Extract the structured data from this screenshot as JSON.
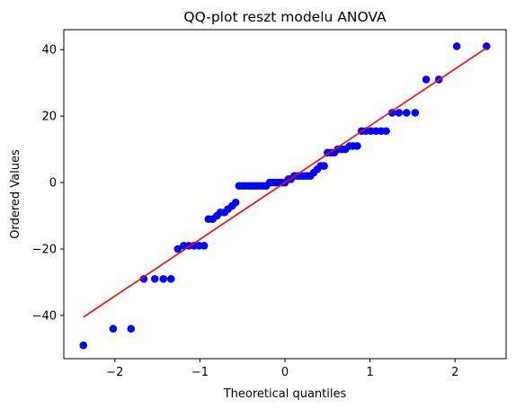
{
  "chart_data": {
    "type": "scatter",
    "title": "QQ-plot reszt modelu ANOVA",
    "xlabel": "Theoretical quantiles",
    "ylabel": "Ordered Values",
    "xlim": [
      -2.6,
      2.6
    ],
    "ylim": [
      -53,
      46
    ],
    "xticks": [
      -2,
      -1,
      0,
      1,
      2
    ],
    "xtick_labels": [
      "−2",
      "−1",
      "0",
      "1",
      "2"
    ],
    "yticks": [
      -40,
      -20,
      0,
      20,
      40
    ],
    "ytick_labels": [
      "−40",
      "−20",
      "0",
      "20",
      "40"
    ],
    "grid": false,
    "legend": "none",
    "colors": {
      "points": "#0000ff",
      "fit_line": "#ff0000"
    },
    "series": [
      {
        "type": "scatter",
        "points": [
          [
            -2.37,
            -49
          ],
          [
            -2.02,
            -44
          ],
          [
            -1.81,
            -44
          ],
          [
            -1.66,
            -29
          ],
          [
            -1.53,
            -29
          ],
          [
            -1.43,
            -29
          ],
          [
            -1.34,
            -29
          ],
          [
            -1.26,
            -20
          ],
          [
            -1.19,
            -19
          ],
          [
            -1.13,
            -19
          ],
          [
            -1.07,
            -19
          ],
          [
            -1.01,
            -19
          ],
          [
            -0.95,
            -19
          ],
          [
            -0.9,
            -11
          ],
          [
            -0.85,
            -11
          ],
          [
            -0.8,
            -10
          ],
          [
            -0.76,
            -9
          ],
          [
            -0.71,
            -9
          ],
          [
            -0.67,
            -8
          ],
          [
            -0.62,
            -7
          ],
          [
            -0.58,
            -6
          ],
          [
            -0.54,
            -1
          ],
          [
            -0.5,
            -1
          ],
          [
            -0.46,
            -1
          ],
          [
            -0.42,
            -1
          ],
          [
            -0.38,
            -1
          ],
          [
            -0.34,
            -1
          ],
          [
            -0.3,
            -1
          ],
          [
            -0.26,
            -1
          ],
          [
            -0.22,
            -1
          ],
          [
            -0.18,
            0
          ],
          [
            -0.15,
            0
          ],
          [
            -0.11,
            0
          ],
          [
            -0.07,
            0
          ],
          [
            -0.04,
            0
          ],
          [
            0.0,
            0
          ],
          [
            0.04,
            1
          ],
          [
            0.07,
            1
          ],
          [
            0.11,
            2
          ],
          [
            0.15,
            2
          ],
          [
            0.18,
            2
          ],
          [
            0.22,
            2
          ],
          [
            0.26,
            2
          ],
          [
            0.3,
            2
          ],
          [
            0.34,
            3
          ],
          [
            0.38,
            4
          ],
          [
            0.42,
            5
          ],
          [
            0.46,
            5
          ],
          [
            0.5,
            9
          ],
          [
            0.54,
            9
          ],
          [
            0.58,
            9
          ],
          [
            0.62,
            10
          ],
          [
            0.67,
            10
          ],
          [
            0.71,
            10
          ],
          [
            0.76,
            11
          ],
          [
            0.8,
            11
          ],
          [
            0.85,
            11
          ],
          [
            0.9,
            15.5
          ],
          [
            0.95,
            15.5
          ],
          [
            1.01,
            15.5
          ],
          [
            1.07,
            15.5
          ],
          [
            1.13,
            15.5
          ],
          [
            1.19,
            15.5
          ],
          [
            1.26,
            21
          ],
          [
            1.34,
            21
          ],
          [
            1.43,
            21
          ],
          [
            1.53,
            21
          ],
          [
            1.66,
            31
          ],
          [
            1.81,
            31
          ],
          [
            2.02,
            41
          ],
          [
            2.37,
            41
          ]
        ]
      },
      {
        "type": "line",
        "points": [
          [
            -2.37,
            -40.5
          ],
          [
            2.37,
            40.5
          ]
        ]
      }
    ]
  }
}
